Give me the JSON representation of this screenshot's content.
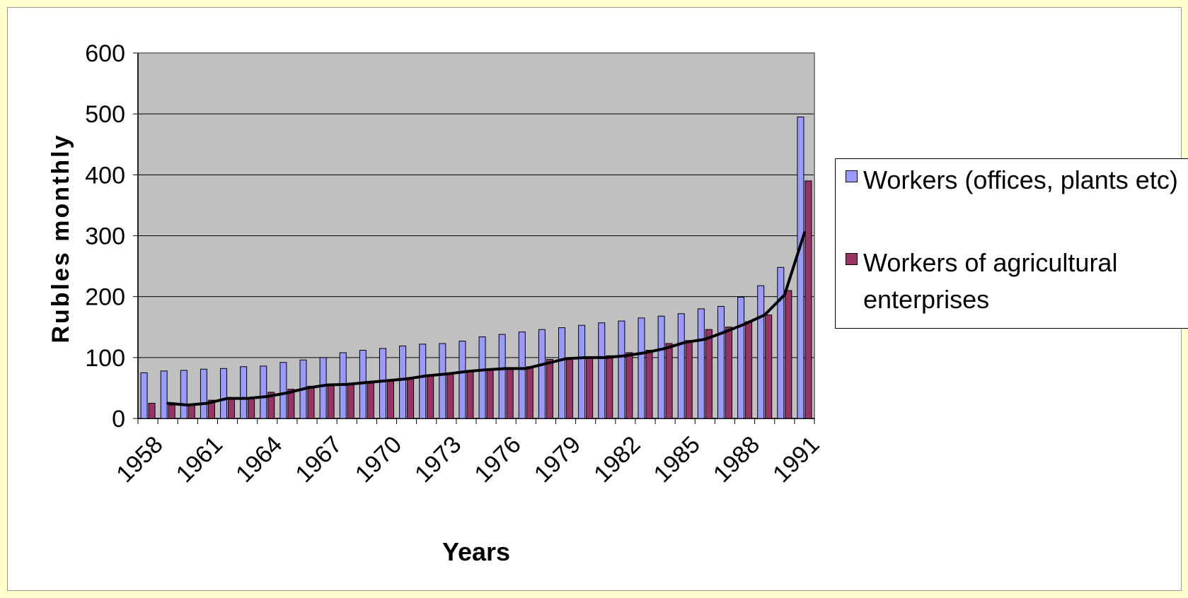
{
  "chart_data": {
    "type": "bar",
    "ylabel": "Rubles monthly",
    "xlabel": "Years",
    "ylim": [
      0,
      600
    ],
    "yticks": [
      0,
      100,
      200,
      300,
      400,
      500,
      600
    ],
    "grid": true,
    "legend_position": "right",
    "categories": [
      "1958",
      "1959",
      "1960",
      "1961",
      "1962",
      "1963",
      "1964",
      "1965",
      "1966",
      "1967",
      "1968",
      "1969",
      "1970",
      "1971",
      "1972",
      "1973",
      "1974",
      "1975",
      "1976",
      "1977",
      "1978",
      "1979",
      "1980",
      "1981",
      "1982",
      "1983",
      "1984",
      "1985",
      "1986",
      "1987",
      "1988",
      "1989",
      "1990",
      "1991"
    ],
    "xtick_labels": [
      "1958",
      "1961",
      "1964",
      "1967",
      "1970",
      "1973",
      "1976",
      "1979",
      "1982",
      "1985",
      "1988",
      "1991"
    ],
    "series": [
      {
        "name": "Workers (offices, plants etc)",
        "type": "bar",
        "color": "#9999ff",
        "values": [
          75,
          78,
          79,
          81,
          82,
          85,
          86,
          92,
          96,
          100,
          108,
          112,
          115,
          119,
          122,
          123,
          127,
          134,
          138,
          142,
          146,
          149,
          153,
          157,
          160,
          165,
          168,
          172,
          180,
          184,
          199,
          218,
          248,
          495
        ]
      },
      {
        "name": "Workers of agricultural enterprises",
        "type": "bar",
        "color": "#993366",
        "values": [
          25,
          22,
          22,
          30,
          33,
          34,
          43,
          48,
          53,
          55,
          57,
          60,
          63,
          67,
          70,
          74,
          77,
          80,
          81,
          85,
          97,
          99,
          101,
          103,
          108,
          112,
          123,
          128,
          146,
          150,
          159,
          170,
          210,
          390
        ]
      },
      {
        "type": "line",
        "color": "#000000",
        "values": [
          null,
          25,
          22,
          25,
          33,
          33,
          36,
          42,
          50,
          55,
          56,
          59,
          62,
          65,
          70,
          73,
          77,
          80,
          82,
          82,
          90,
          98,
          100,
          100,
          103,
          108,
          115,
          125,
          130,
          142,
          155,
          170,
          203,
          305
        ]
      }
    ]
  }
}
